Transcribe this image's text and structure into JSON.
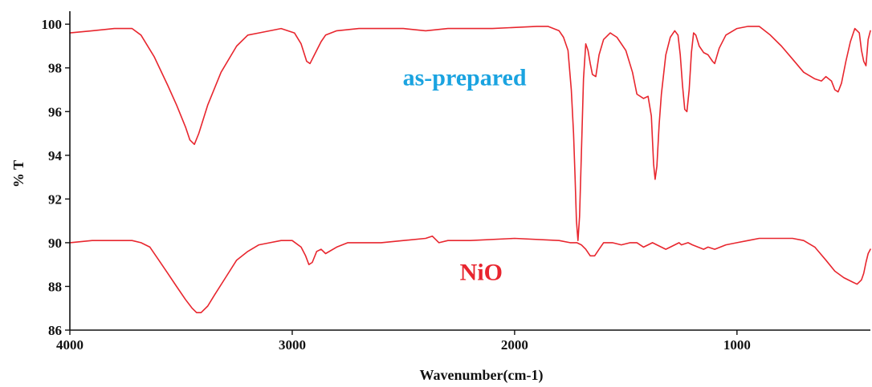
{
  "chart_data": {
    "type": "line",
    "title": "",
    "xlabel": "Wavenumber(cm-1)",
    "ylabel": "% T",
    "xlim": [
      4000,
      400
    ],
    "ylim": [
      86,
      100.3
    ],
    "x_ticks": [
      4000,
      3000,
      2000,
      1000
    ],
    "y_ticks": [
      86,
      88,
      90,
      92,
      94,
      96,
      98,
      100
    ],
    "grid": false,
    "legend": "none",
    "annotations": [
      {
        "text": "as-prepared",
        "color": "#1aa3e0",
        "series": 0
      },
      {
        "text": "NiO",
        "color": "#e8252f",
        "series": 1
      }
    ],
    "series": [
      {
        "name": "as-prepared",
        "color": "#e8262e",
        "x": [
          4000,
          3900,
          3800,
          3720,
          3680,
          3620,
          3560,
          3520,
          3480,
          3460,
          3440,
          3420,
          3380,
          3320,
          3250,
          3200,
          3150,
          3050,
          2990,
          2960,
          2935,
          2920,
          2900,
          2870,
          2850,
          2800,
          2700,
          2500,
          2400,
          2300,
          2100,
          1900,
          1850,
          1800,
          1780,
          1760,
          1745,
          1735,
          1728,
          1722,
          1715,
          1708,
          1700,
          1690,
          1680,
          1670,
          1660,
          1650,
          1635,
          1620,
          1600,
          1570,
          1540,
          1500,
          1470,
          1450,
          1420,
          1400,
          1385,
          1375,
          1368,
          1360,
          1350,
          1340,
          1320,
          1300,
          1280,
          1265,
          1255,
          1245,
          1235,
          1225,
          1215,
          1205,
          1195,
          1185,
          1170,
          1150,
          1130,
          1110,
          1100,
          1080,
          1050,
          1000,
          950,
          900,
          850,
          800,
          750,
          700,
          650,
          620,
          600,
          575,
          560,
          545,
          530,
          510,
          490,
          470,
          450,
          440,
          430,
          420,
          410,
          400
        ],
        "values": [
          99.6,
          99.7,
          99.8,
          99.8,
          99.5,
          98.5,
          97.2,
          96.3,
          95.3,
          94.7,
          94.5,
          95.0,
          96.3,
          97.8,
          99.0,
          99.5,
          99.6,
          99.8,
          99.6,
          99.1,
          98.3,
          98.2,
          98.6,
          99.2,
          99.5,
          99.7,
          99.8,
          99.8,
          99.7,
          99.8,
          99.8,
          99.9,
          99.9,
          99.7,
          99.4,
          98.8,
          97.0,
          95.0,
          93.0,
          91.0,
          90.1,
          91.2,
          94.0,
          97.5,
          99.1,
          98.8,
          98.2,
          97.7,
          97.6,
          98.6,
          99.3,
          99.6,
          99.4,
          98.8,
          97.8,
          96.8,
          96.6,
          96.7,
          95.8,
          93.6,
          92.9,
          93.5,
          95.4,
          96.8,
          98.6,
          99.4,
          99.7,
          99.5,
          98.6,
          97.2,
          96.1,
          96.0,
          97.0,
          98.7,
          99.6,
          99.5,
          99.0,
          98.7,
          98.6,
          98.3,
          98.2,
          98.9,
          99.5,
          99.8,
          99.9,
          99.9,
          99.5,
          99.0,
          98.4,
          97.8,
          97.5,
          97.4,
          97.6,
          97.4,
          97.0,
          96.9,
          97.3,
          98.3,
          99.2,
          99.8,
          99.6,
          98.8,
          98.3,
          98.1,
          99.3,
          99.7
        ]
      },
      {
        "name": "NiO",
        "color": "#e8262e",
        "x": [
          4000,
          3900,
          3800,
          3720,
          3680,
          3640,
          3600,
          3560,
          3520,
          3480,
          3450,
          3430,
          3410,
          3380,
          3350,
          3300,
          3250,
          3200,
          3150,
          3100,
          3050,
          3000,
          2960,
          2940,
          2925,
          2910,
          2890,
          2870,
          2850,
          2800,
          2750,
          2600,
          2500,
          2400,
          2370,
          2340,
          2300,
          2200,
          2000,
          1800,
          1750,
          1720,
          1700,
          1680,
          1660,
          1640,
          1620,
          1600,
          1560,
          1520,
          1480,
          1450,
          1420,
          1400,
          1380,
          1360,
          1320,
          1300,
          1260,
          1250,
          1220,
          1200,
          1150,
          1130,
          1100,
          1050,
          1000,
          950,
          900,
          850,
          800,
          750,
          700,
          650,
          600,
          560,
          520,
          480,
          460,
          440,
          430,
          420,
          410,
          400
        ],
        "values": [
          90.0,
          90.1,
          90.1,
          90.1,
          90.0,
          89.8,
          89.2,
          88.6,
          88.0,
          87.4,
          87.0,
          86.8,
          86.8,
          87.1,
          87.6,
          88.4,
          89.2,
          89.6,
          89.9,
          90.0,
          90.1,
          90.1,
          89.8,
          89.4,
          89.0,
          89.1,
          89.6,
          89.7,
          89.5,
          89.8,
          90.0,
          90.0,
          90.1,
          90.2,
          90.3,
          90.0,
          90.1,
          90.1,
          90.2,
          90.1,
          90.0,
          90.0,
          89.9,
          89.7,
          89.4,
          89.4,
          89.7,
          90.0,
          90.0,
          89.9,
          90.0,
          90.0,
          89.8,
          89.9,
          90.0,
          89.9,
          89.7,
          89.8,
          90.0,
          89.9,
          90.0,
          89.9,
          89.7,
          89.8,
          89.7,
          89.9,
          90.0,
          90.1,
          90.2,
          90.2,
          90.2,
          90.2,
          90.1,
          89.8,
          89.2,
          88.7,
          88.4,
          88.2,
          88.1,
          88.3,
          88.6,
          89.1,
          89.5,
          89.7
        ]
      }
    ]
  }
}
